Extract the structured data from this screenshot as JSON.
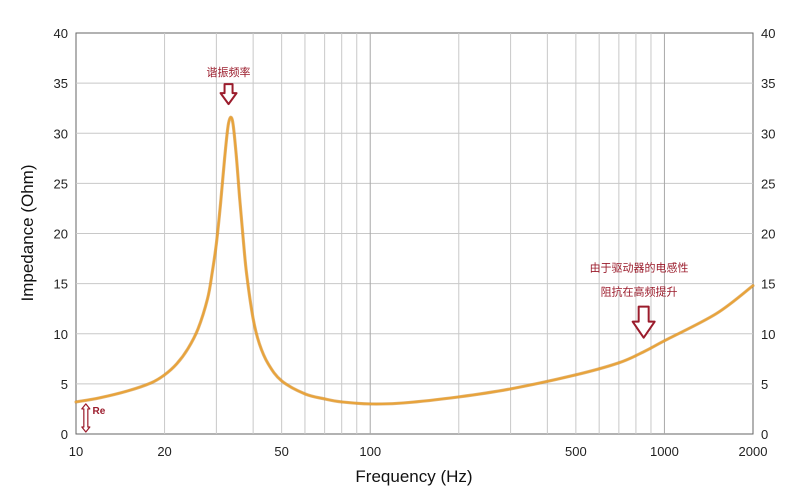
{
  "chart_data": {
    "type": "line",
    "title": "",
    "xlabel": "Frequency (Hz)",
    "ylabel": "Impedance (Ohm)",
    "xscale": "log",
    "xlim": [
      10,
      2000
    ],
    "ylim": [
      0,
      40
    ],
    "grid": true,
    "x_tick_labels": [
      "10",
      "20",
      "50",
      "100",
      "500",
      "1000",
      "2000"
    ],
    "x_ticks": [
      10,
      20,
      50,
      100,
      500,
      1000,
      2000
    ],
    "y_ticks": [
      0,
      5,
      10,
      15,
      20,
      25,
      30,
      35,
      40
    ],
    "y_tick_labels": [
      "0",
      "5",
      "10",
      "15",
      "20",
      "25",
      "30",
      "35",
      "40"
    ],
    "color": "#e8a33a",
    "series": [
      {
        "x": [
          10,
          12,
          15,
          18,
          20,
          22,
          24,
          26,
          28,
          29,
          30,
          31,
          32,
          33,
          34,
          35,
          36,
          37,
          38,
          40,
          42,
          45,
          50,
          60,
          70,
          80,
          100,
          130,
          200,
          300,
          500,
          700,
          850,
          1000,
          1500,
          2000
        ],
        "y": [
          3.2,
          3.6,
          4.3,
          5.1,
          5.9,
          7.0,
          8.5,
          10.5,
          13.5,
          16.0,
          19.0,
          23.0,
          27.5,
          31.0,
          31.3,
          28.0,
          23.5,
          19.5,
          16.0,
          11.5,
          9.0,
          7.0,
          5.3,
          4.0,
          3.5,
          3.2,
          3.0,
          3.1,
          3.7,
          4.5,
          5.9,
          7.1,
          8.2,
          9.3,
          12.0,
          14.8
        ]
      }
    ],
    "annotations": [
      {
        "text": "谐振频率",
        "x": 33,
        "y": 35.7
      },
      {
        "text": "由于驱动器的电感性",
        "x": 820,
        "y": 16.2
      },
      {
        "text": "阻抗在高频提升",
        "x": 820,
        "y": 13.8
      },
      {
        "text": "Re",
        "x": 11.2,
        "y": 2.0
      }
    ]
  }
}
